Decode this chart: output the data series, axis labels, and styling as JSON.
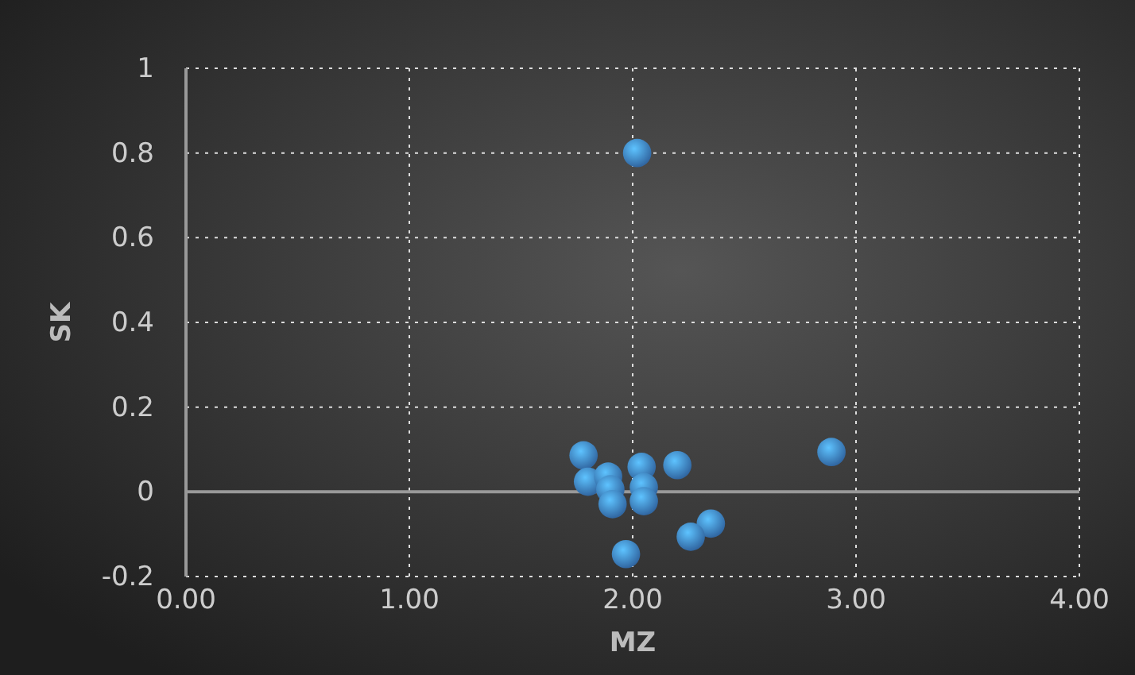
{
  "chart_data": {
    "type": "scatter",
    "xlabel": "MZ",
    "ylabel": "SK",
    "marker": "circle",
    "grid": true,
    "xlim": [
      0,
      4
    ],
    "xticks": [
      {
        "value": 0,
        "label": "0.00"
      },
      {
        "value": 1,
        "label": "1.00"
      },
      {
        "value": 2,
        "label": "2.00"
      },
      {
        "value": 3,
        "label": "3.00"
      },
      {
        "value": 4,
        "label": "4.00"
      }
    ],
    "ylim": [
      -0.2,
      1
    ],
    "yticks": [
      -0.2,
      0,
      0.2,
      0.4,
      0.6,
      0.8,
      1
    ],
    "series": [
      {
        "color": "#3d7fc9",
        "x": [
          1.78,
          1.8,
          1.89,
          1.9,
          1.91,
          2.04,
          2.05,
          2.05,
          2.2,
          2.35,
          2.26,
          1.97,
          2.89,
          2.02
        ],
        "values": [
          0.086,
          0.024,
          0.036,
          0.006,
          -0.029,
          0.059,
          0.011,
          -0.022,
          0.063,
          -0.075,
          -0.106,
          -0.147,
          0.094,
          0.8
        ]
      }
    ]
  }
}
